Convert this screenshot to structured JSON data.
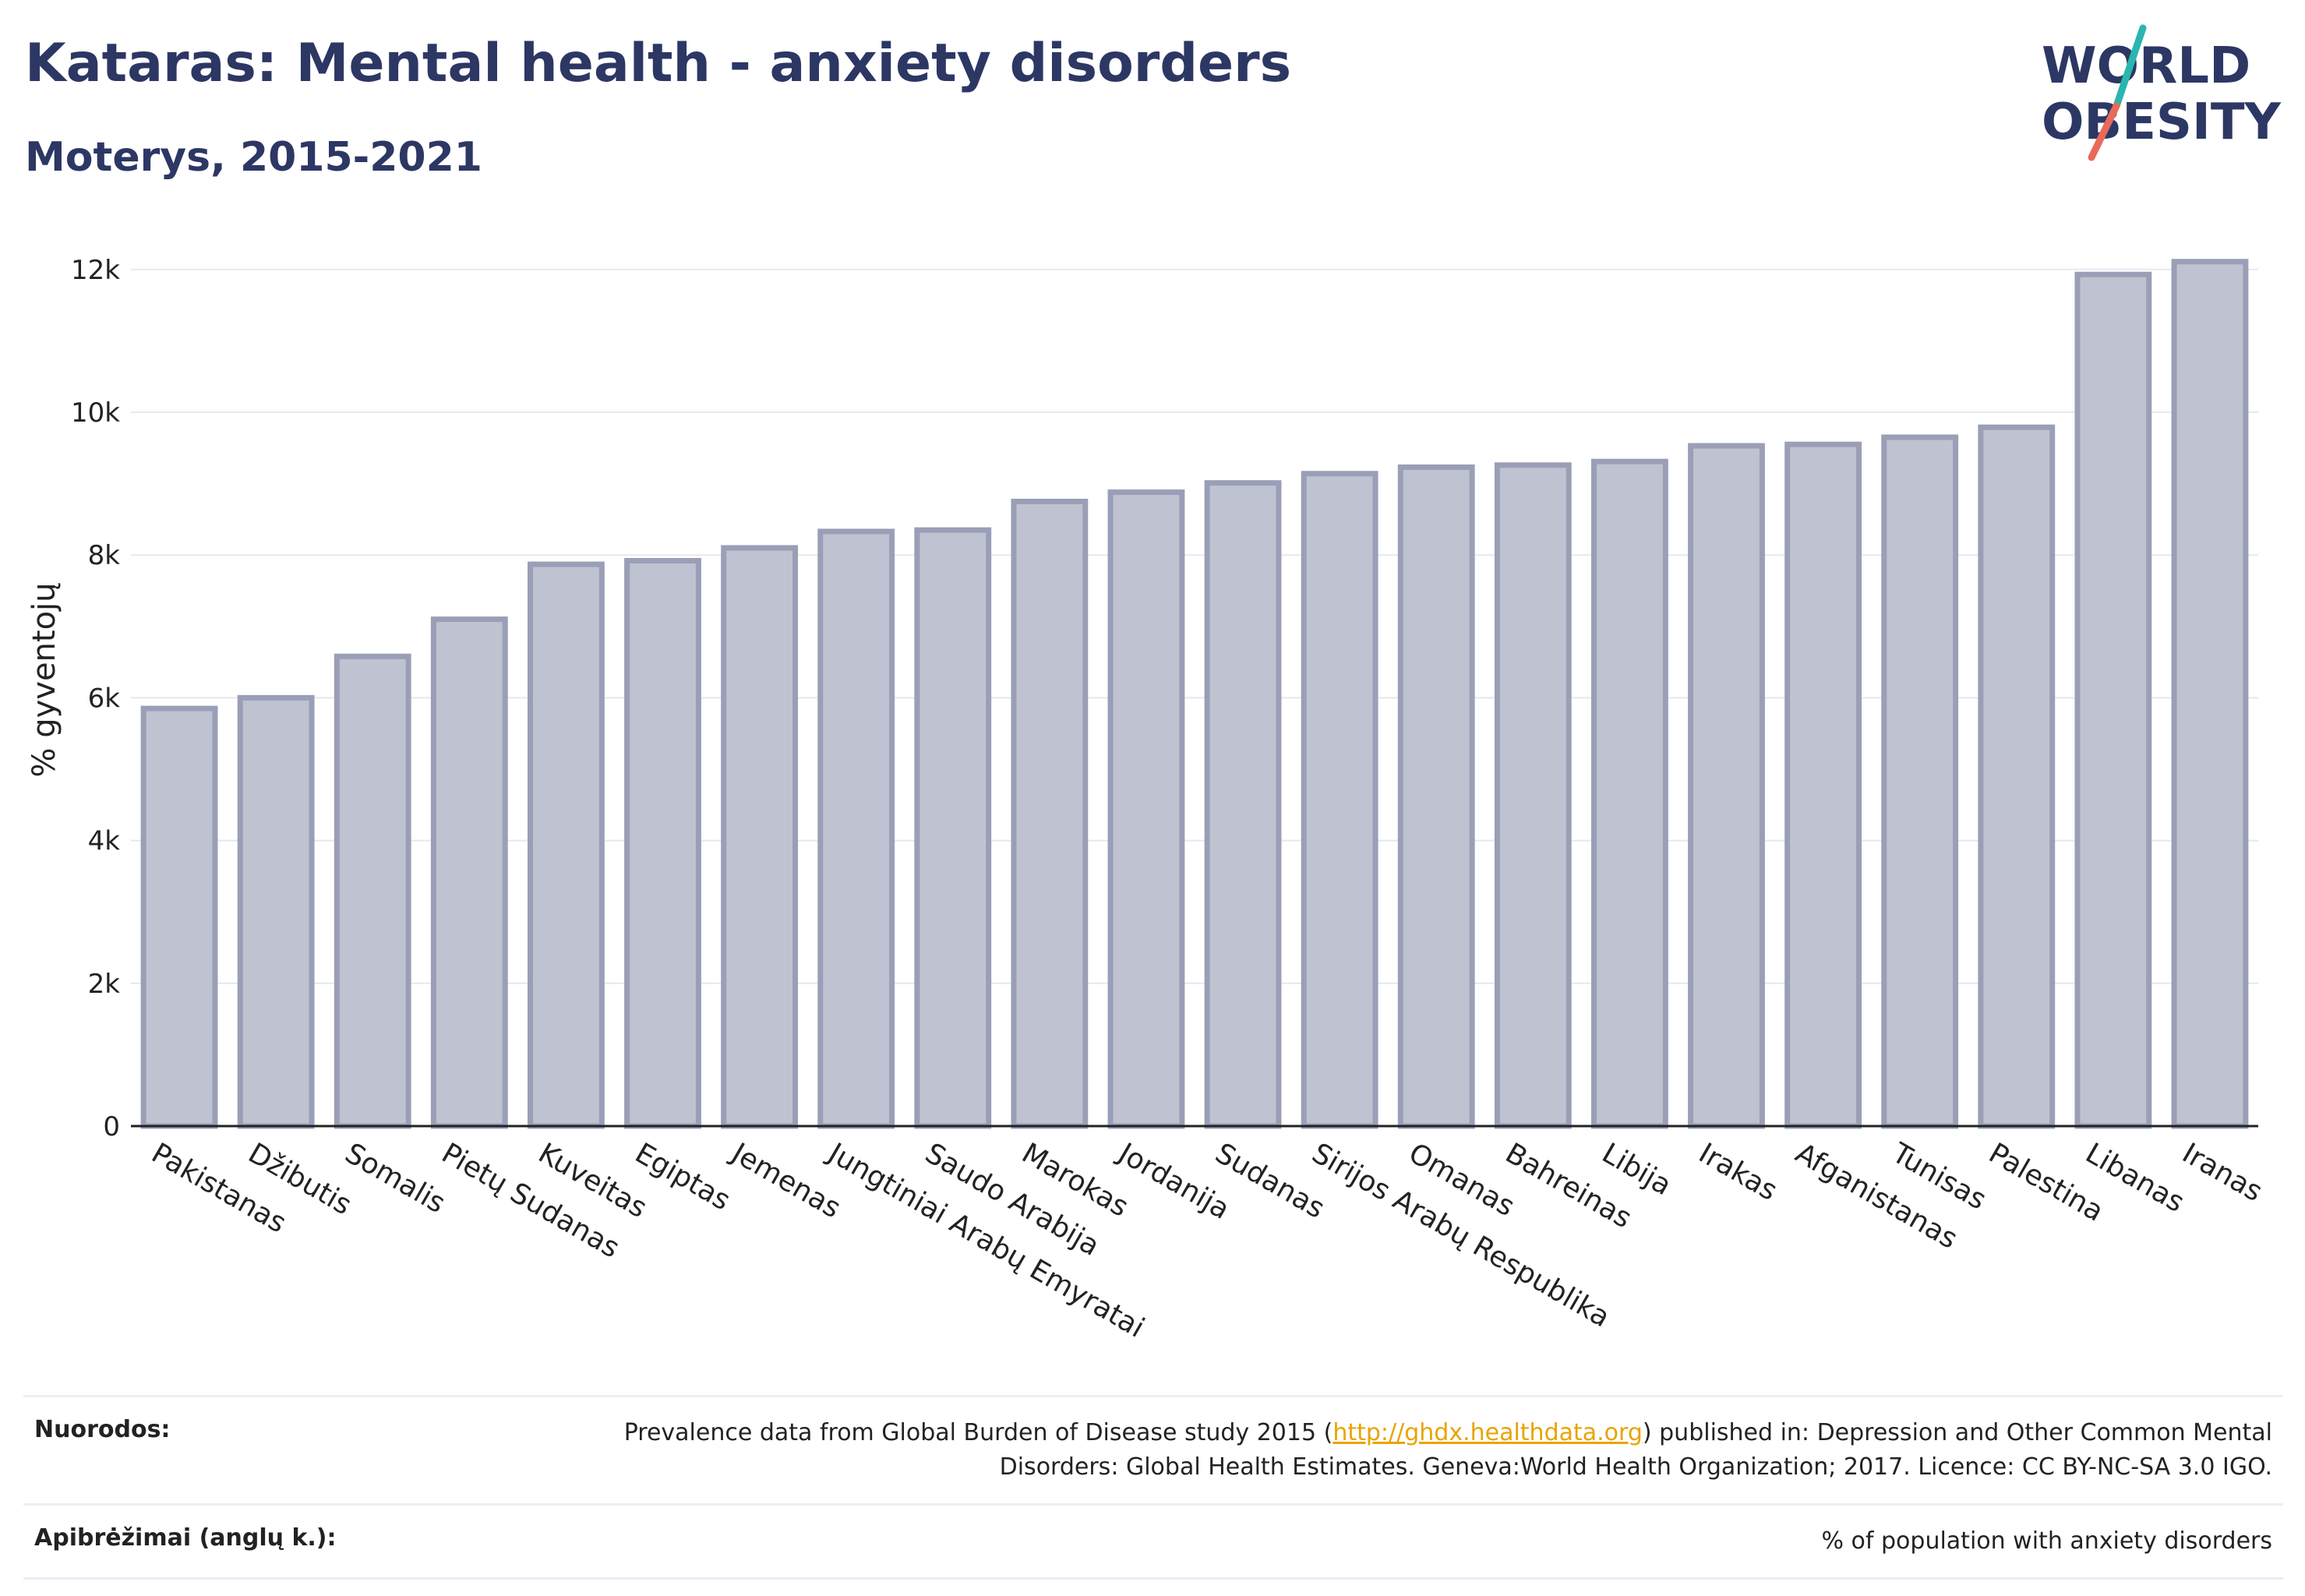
{
  "header": {
    "title": "Kataras: Mental health - anxiety disorders",
    "subtitle": "Moterys, 2015-2021"
  },
  "logo": {
    "line1": "WORLD",
    "line2": "OBESITY",
    "colors": {
      "text": "#2d3764",
      "slash_top": "#2bb5b0",
      "slash_bottom": "#e86a5a"
    }
  },
  "chart_data": {
    "type": "bar",
    "ylabel": "% gyventojų",
    "ylim": [
      0,
      12500
    ],
    "yticks": [
      0,
      2000,
      4000,
      6000,
      8000,
      10000,
      12000
    ],
    "ytick_labels": [
      "0",
      "2k",
      "4k",
      "6k",
      "8k",
      "10k",
      "12k"
    ],
    "grid": true,
    "categories": [
      "Pakistanas",
      "Džibutis",
      "Somalis",
      "Pietų Sudanas",
      "Kuveitas",
      "Egiptas",
      "Jemenas",
      "Jungtiniai Arabų Emyratai",
      "Saudo Arabija",
      "Marokas",
      "Jordanija",
      "Sudanas",
      "Sirijos Arabų Respublika",
      "Omanas",
      "Bahreinas",
      "Libija",
      "Irakas",
      "Afganistanas",
      "Tunisas",
      "Palestina",
      "Libanas",
      "Iranas"
    ],
    "values": [
      5850,
      6000,
      6580,
      7100,
      7870,
      7920,
      8100,
      8330,
      8350,
      8750,
      8880,
      9010,
      9140,
      9230,
      9260,
      9310,
      9530,
      9550,
      9650,
      9790,
      11930,
      12110
    ],
    "colors": {
      "bar_fill": "#bfc2d0",
      "bar_stroke": "#9a9fb7",
      "grid": "#e6e8ef",
      "axis": "#222222"
    }
  },
  "footer": {
    "sources_label": "Nuorodos:",
    "sources_text_before": "Prevalence data from Global Burden of Disease study 2015 (",
    "sources_link": "http://ghdx.healthdata.org",
    "sources_text_after": ") published in: Depression and Other Common Mental Disorders: Global Health Estimates. Geneva:World Health Organization; 2017. Licence: CC BY-NC-SA 3.0 IGO.",
    "definitions_label": "Apibrėžimai (anglų k.):",
    "definitions_text": "% of population with anxiety disorders"
  }
}
